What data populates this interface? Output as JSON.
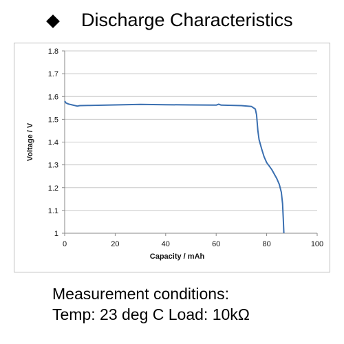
{
  "header": {
    "title": "Discharge Characteristics"
  },
  "conditions": {
    "line1": "Measurement conditions:",
    "line2": "Temp: 23 deg C  Load: 10kΩ"
  },
  "chart_data": {
    "type": "line",
    "xlabel": "Capacity  /  mAh",
    "ylabel": "Voltage  /  V",
    "xlim": [
      0,
      100
    ],
    "ylim": [
      1.0,
      1.8
    ],
    "xticks": [
      0,
      20,
      40,
      60,
      80,
      100
    ],
    "yticks": [
      1,
      1.1,
      1.2,
      1.3,
      1.4,
      1.5,
      1.6,
      1.7,
      1.8
    ],
    "ytick_labels": [
      "1",
      "1.1",
      "1.2",
      "1.3",
      "1.4",
      "1.5",
      "1.6",
      "1.7",
      "1.8"
    ],
    "grid": "horizontal",
    "line_color": "#3a6fb0",
    "series": [
      {
        "x": [
          0,
          0.5,
          1.5,
          3,
          5,
          6,
          10,
          20,
          30,
          40,
          50,
          60,
          61,
          62,
          70,
          74,
          75.5,
          76,
          76.5,
          77,
          78,
          79,
          80,
          81,
          82,
          83,
          84,
          85,
          85.8,
          86.3,
          86.6,
          86.8
        ],
        "y": [
          1.58,
          1.572,
          1.567,
          1.563,
          1.558,
          1.56,
          1.561,
          1.563,
          1.565,
          1.564,
          1.563,
          1.562,
          1.566,
          1.562,
          1.56,
          1.556,
          1.545,
          1.52,
          1.45,
          1.41,
          1.37,
          1.335,
          1.31,
          1.295,
          1.28,
          1.26,
          1.24,
          1.215,
          1.18,
          1.13,
          1.06,
          1.0
        ]
      }
    ]
  }
}
